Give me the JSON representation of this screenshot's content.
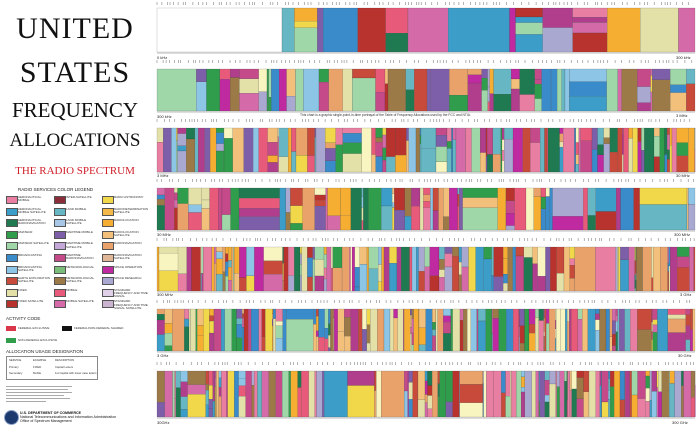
{
  "title": {
    "line1": "UNITED",
    "line2": "STATES",
    "line3": "FREQUENCY",
    "line4": "ALLOCATIONS",
    "subtitle": "THE RADIO SPECTRUM"
  },
  "legend": {
    "title": "RADIO SERVICES COLOR LEGEND",
    "items": [
      {
        "label": "AERONAUTICAL MOBILE",
        "color": "#e87ea1"
      },
      {
        "label": "AERONAUTICAL MOBILE SATELLITE",
        "color": "#3c9dc8"
      },
      {
        "label": "AERONAUTICAL RADIONAVIGATION",
        "color": "#1f7a52"
      },
      {
        "label": "AMATEUR",
        "color": "#2f9d4b"
      },
      {
        "label": "AMATEUR SATELLITE",
        "color": "#9fd7a9"
      },
      {
        "label": "BROADCASTING",
        "color": "#3a8bc9"
      },
      {
        "label": "BROADCASTING SATELLITE",
        "color": "#8cc5e6"
      },
      {
        "label": "EARTH EXPLORATION SATELLITE",
        "color": "#c84a3a"
      },
      {
        "label": "FIXED",
        "color": "#e4e1a8"
      },
      {
        "label": "FIXED SATELLITE",
        "color": "#b8332d"
      },
      {
        "label": "INTER-SATELLITE",
        "color": "#8a2d3a"
      },
      {
        "label": "LAND MOBILE",
        "color": "#66b6c4"
      },
      {
        "label": "LAND MOBILE SATELLITE",
        "color": "#a8c7e6"
      },
      {
        "label": "MARITIME MOBILE",
        "color": "#7d5ea8"
      },
      {
        "label": "MARITIME MOBILE SATELLITE",
        "color": "#c4a8d8"
      },
      {
        "label": "MARITIME RADIONAVIGATION",
        "color": "#c44a8a"
      },
      {
        "label": "METEOROLOGICAL",
        "color": "#7bbd7a"
      },
      {
        "label": "METEOROLOGICAL SATELLITE",
        "color": "#9c7a48"
      },
      {
        "label": "MOBILE",
        "color": "#e85a7a"
      },
      {
        "label": "MOBILE SATELLITE",
        "color": "#d46aa8"
      },
      {
        "label": "RADIO ASTRONOMY",
        "color": "#f0d84a"
      },
      {
        "label": "RADIODETERMINATION SATELLITE",
        "color": "#f2b84a"
      },
      {
        "label": "RADIOLOCATION",
        "color": "#f5ad32"
      },
      {
        "label": "RADIOLOCATION SATELLITE",
        "color": "#f2c07a"
      },
      {
        "label": "RADIONAVIGATION",
        "color": "#e9a36a"
      },
      {
        "label": "RADIONAVIGATION SATELLITE",
        "color": "#e0b898"
      },
      {
        "label": "SPACE OPERATION",
        "color": "#c02aa0"
      },
      {
        "label": "SPACE RESEARCH",
        "color": "#a8a8d0"
      },
      {
        "label": "STANDARD FREQUENCY AND TIME SIGNAL",
        "color": "#e0d0e8"
      },
      {
        "label": "STANDARD FREQUENCY AND TIME SIGNAL SATELLITE",
        "color": "#cab4d0"
      }
    ]
  },
  "activity": {
    "title": "ACTIVITY CODE",
    "items": [
      {
        "label": "FEDERAL EXCLUSIVE",
        "color": "#d9364a"
      },
      {
        "label": "FEDERAL/NON-FEDERAL SHARED",
        "color": "#111111"
      },
      {
        "label": "NON-FEDERAL EXCLUSIVE",
        "color": "#2f9d4b"
      }
    ]
  },
  "allocation_usage": {
    "title": "ALLOCATION USAGE DESIGNATION",
    "headers": [
      "SERVICE",
      "EXAMPLE",
      "DESCRIPTION"
    ],
    "rows": [
      [
        "Primary",
        "FIXED",
        "Capital Letters"
      ],
      [
        "Secondary",
        "Mobile",
        "1st Capital with lower case letters"
      ]
    ]
  },
  "footer": {
    "dept_line1": "U.S. DEPARTMENT OF COMMERCE",
    "dept_line2": "National Telecommunications and Information Administration",
    "dept_line3": "Office of Spectrum Management"
  },
  "bands": {
    "r1_left": "0 kHz",
    "r1_right": "300 kHz",
    "r2_left": "300 kHz",
    "r2_right": "3 MHz",
    "r3_left": "3 MHz",
    "r3_right": "30 MHz",
    "r4_left": "30 MHz",
    "r4_right": "300 MHz",
    "r5_left": "300 MHz",
    "r5_right": "3 GHz",
    "r6_left": "3 GHz",
    "r6_right": "30 GHz",
    "r7_left": "30GHz",
    "r7_right": "300 GHz",
    "note": "This chart is a graphic single-point-in-time portrayal of the Table of Frequency Allocations used by the FCC and NTIA."
  },
  "block_labels": {
    "r1": [
      "NOT ALLOCATED",
      "RADIONAVIGATION",
      "MARITIME MOBILE",
      "FIXED",
      "MARITIME MOBILE",
      "MARITIME MOBILE",
      "RADIONAVIGATION",
      "AERONAUTICAL RADIONAVIGATION"
    ],
    "r2": [
      "AERONAUTICAL RADIONAVIGATION",
      "MARITIME MOBILE",
      "BROADCASTING",
      "MOBILE",
      "FIXED"
    ],
    "r3": [
      "FIXED",
      "MOBILE",
      "BROADCASTING",
      "AMATEUR",
      "MARITIME MOBILE"
    ],
    "r4": [
      "FIXED",
      "MOBILE",
      "BROADCASTING",
      "AERONAUTICAL MOBILE",
      "AMATEUR"
    ],
    "r5": [
      "BROADCASTING",
      "FIXED",
      "MOBILE",
      "RADIONAVIGATION"
    ],
    "r6": [
      "FIXED",
      "MOBILE",
      "FIXED SATELLITE",
      "RADIOLOCATION"
    ],
    "r7": [
      "FIXED",
      "MOBILE",
      "EARTH EXPLORATION SATELLITE"
    ]
  }
}
